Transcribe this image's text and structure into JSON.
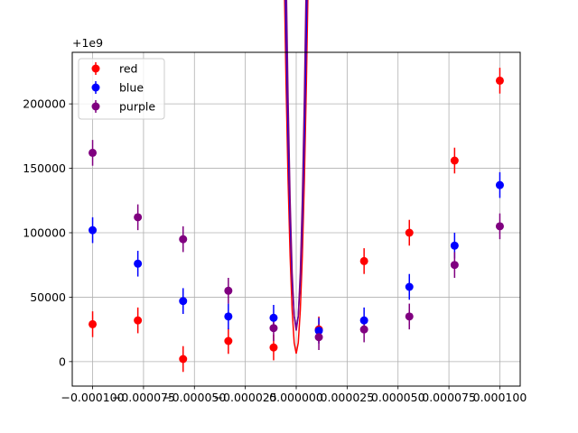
{
  "chart_data": {
    "type": "scatter",
    "offset_label": "+1e9",
    "x_ticks": [
      {
        "value": -0.0001,
        "label": "−0.000100"
      },
      {
        "value": -7.5e-05,
        "label": "−0.000075"
      },
      {
        "value": -5e-05,
        "label": "−0.000050"
      },
      {
        "value": -2.5e-05,
        "label": "−0.000025"
      },
      {
        "value": 0.0,
        "label": "0.000000"
      },
      {
        "value": 2.5e-05,
        "label": "0.000025"
      },
      {
        "value": 5e-05,
        "label": "0.000050"
      },
      {
        "value": 7.5e-05,
        "label": "0.000075"
      },
      {
        "value": 0.0001,
        "label": "0.000100"
      }
    ],
    "y_ticks": [
      {
        "value": 0,
        "label": "0"
      },
      {
        "value": 50000,
        "label": "50000"
      },
      {
        "value": 100000,
        "label": "100000"
      },
      {
        "value": 150000,
        "label": "150000"
      },
      {
        "value": 200000,
        "label": "200000"
      }
    ],
    "xlim": [
      -0.00011,
      0.00011
    ],
    "ylim": [
      -19000,
      240000
    ],
    "grid": true,
    "legend_position": "top-left",
    "x": [
      -0.0001,
      -7.7778e-05,
      -5.5556e-05,
      -3.3333e-05,
      -1.1111e-05,
      1.1111e-05,
      3.3333e-05,
      5.5556e-05,
      7.7778e-05,
      0.0001
    ],
    "series": [
      {
        "name": "red",
        "color": "#ff0000",
        "y": [
          29000,
          32000,
          2000,
          16000,
          11000,
          25000,
          78000,
          100000,
          156000,
          218000
        ],
        "yerr": [
          10000,
          10000,
          10000,
          10000,
          10000,
          10000,
          10000,
          10000,
          10000,
          10000
        ],
        "fit": {
          "a": 8400000000000000,
          "b": 880,
          "c": 6200
        }
      },
      {
        "name": "blue",
        "color": "#0000ff",
        "y": [
          102000,
          76000,
          47000,
          35000,
          34000,
          24000,
          32000,
          58000,
          90000,
          137000
        ],
        "yerr": [
          10000,
          10000,
          10000,
          10000,
          10000,
          10000,
          10000,
          10000,
          10000,
          10000
        ],
        "fit": {
          "a": 9300000000000000,
          "b": 140,
          "c": 26000
        }
      },
      {
        "name": "purple",
        "color": "#800080",
        "y": [
          162000,
          112000,
          95000,
          55000,
          26000,
          19000,
          25000,
          35000,
          75000,
          105000
        ],
        "yerr": [
          10000,
          10000,
          10000,
          10000,
          10000,
          10000,
          10000,
          10000,
          10000,
          10000
        ],
        "fit": {
          "a": 11300000000000000,
          "b": -292,
          "c": 24000
        }
      }
    ]
  }
}
